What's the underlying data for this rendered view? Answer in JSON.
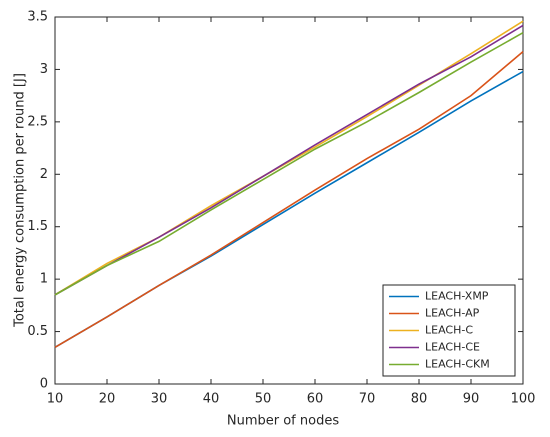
{
  "chart_data": {
    "type": "line",
    "xlabel": "Number of nodes",
    "ylabel": "Total energy consumption per round [J]",
    "x": [
      10,
      20,
      30,
      40,
      50,
      60,
      70,
      80,
      90,
      100
    ],
    "series": [
      {
        "name": "LEACH-XMP",
        "color": "#0072bd",
        "values": [
          0.35,
          0.64,
          0.94,
          1.22,
          1.52,
          1.82,
          2.11,
          2.4,
          2.7,
          2.98
        ]
      },
      {
        "name": "LEACH-AP",
        "color": "#d95319",
        "values": [
          0.35,
          0.64,
          0.94,
          1.23,
          1.54,
          1.85,
          2.15,
          2.43,
          2.75,
          3.17
        ]
      },
      {
        "name": "LEACH-C",
        "color": "#edb120",
        "values": [
          0.85,
          1.15,
          1.4,
          1.7,
          1.98,
          2.26,
          2.55,
          2.85,
          3.15,
          3.46
        ]
      },
      {
        "name": "LEACH-CE",
        "color": "#7e2f8e",
        "values": [
          0.85,
          1.13,
          1.4,
          1.68,
          1.98,
          2.28,
          2.57,
          2.86,
          3.12,
          3.42
        ]
      },
      {
        "name": "LEACH-CKM",
        "color": "#77ac30",
        "values": [
          0.85,
          1.13,
          1.36,
          1.66,
          1.95,
          2.24,
          2.5,
          2.78,
          3.07,
          3.35
        ]
      }
    ],
    "xlim": [
      10,
      100
    ],
    "xticks": [
      10,
      20,
      30,
      40,
      50,
      60,
      70,
      80,
      90,
      100
    ],
    "ylim": [
      0,
      3.5
    ],
    "yticks": [
      0,
      0.5,
      1,
      1.5,
      2,
      2.5,
      3,
      3.5
    ],
    "grid": false,
    "legend": "lower right"
  }
}
